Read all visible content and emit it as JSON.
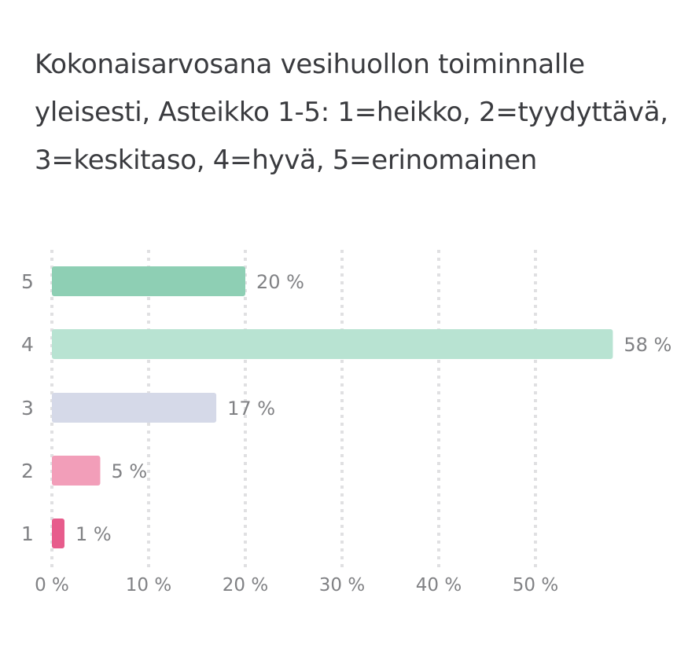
{
  "chart_data": {
    "type": "bar",
    "orientation": "horizontal",
    "title": "Kokonaisarvosana vesihuollon toiminnalle yleisesti, Asteikko 1-5: 1=heikko, 2=tyydyttävä, 3=keskitaso, 4=hyvä, 5=erinomainen",
    "categories": [
      "5",
      "4",
      "3",
      "2",
      "1"
    ],
    "values": [
      20,
      58,
      17,
      5,
      1
    ],
    "value_labels": [
      "20 %",
      "58 %",
      "17 %",
      "5 %",
      "1 %"
    ],
    "colors": [
      "#8ecfb4",
      "#b8e3d2",
      "#d5d9e8",
      "#f29eb9",
      "#e75c8c"
    ],
    "x_ticks": [
      0,
      10,
      20,
      30,
      40,
      50
    ],
    "x_tick_labels": [
      "0 %",
      "10 %",
      "20 %",
      "30 %",
      "40 %",
      "50 %"
    ],
    "xlim": [
      0,
      58
    ],
    "xlabel": "",
    "ylabel": "",
    "grid": "vertical dotted",
    "legend": "none"
  }
}
